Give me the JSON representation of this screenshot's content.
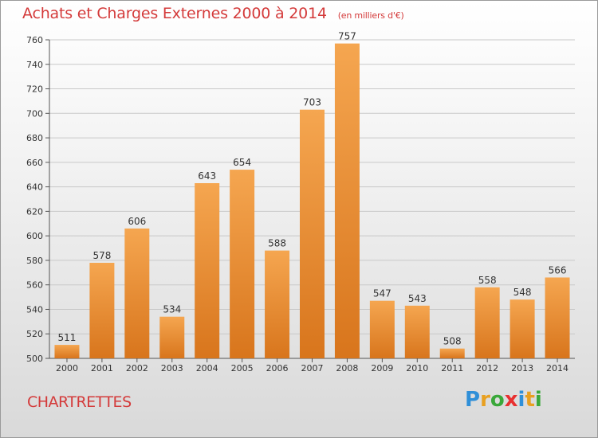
{
  "title": "Achats et Charges Externes 2000 à 2014",
  "unit_note": "(en milliers d'€)",
  "location": "CHARTRETTES",
  "brand": {
    "name": "Proxiti",
    "letters": [
      {
        "ch": "P",
        "color": "#2f8fd8"
      },
      {
        "ch": "r",
        "color": "#e8a020"
      },
      {
        "ch": "o",
        "color": "#3aa83a"
      },
      {
        "ch": "x",
        "color": "#e83030"
      },
      {
        "ch": "i",
        "color": "#2f8fd8"
      },
      {
        "ch": "t",
        "color": "#e8a020"
      },
      {
        "ch": "i",
        "color": "#3aa83a"
      }
    ]
  },
  "colors": {
    "title": "#d43a3a",
    "bar_light": "#f5a650",
    "bar_dark": "#d8751c",
    "grid": "#c8c8c8",
    "axis_text": "#333333"
  },
  "chart_data": {
    "type": "bar",
    "categories": [
      "2000",
      "2001",
      "2002",
      "2003",
      "2004",
      "2005",
      "2006",
      "2007",
      "2008",
      "2009",
      "2010",
      "2011",
      "2012",
      "2013",
      "2014"
    ],
    "values": [
      511,
      578,
      606,
      534,
      643,
      654,
      588,
      703,
      757,
      547,
      543,
      508,
      558,
      548,
      566
    ],
    "ylim": [
      500,
      760
    ],
    "yticks": [
      500,
      520,
      540,
      560,
      580,
      600,
      620,
      640,
      660,
      680,
      700,
      720,
      740,
      760
    ],
    "grid": true,
    "xlabel": "",
    "ylabel": ""
  }
}
